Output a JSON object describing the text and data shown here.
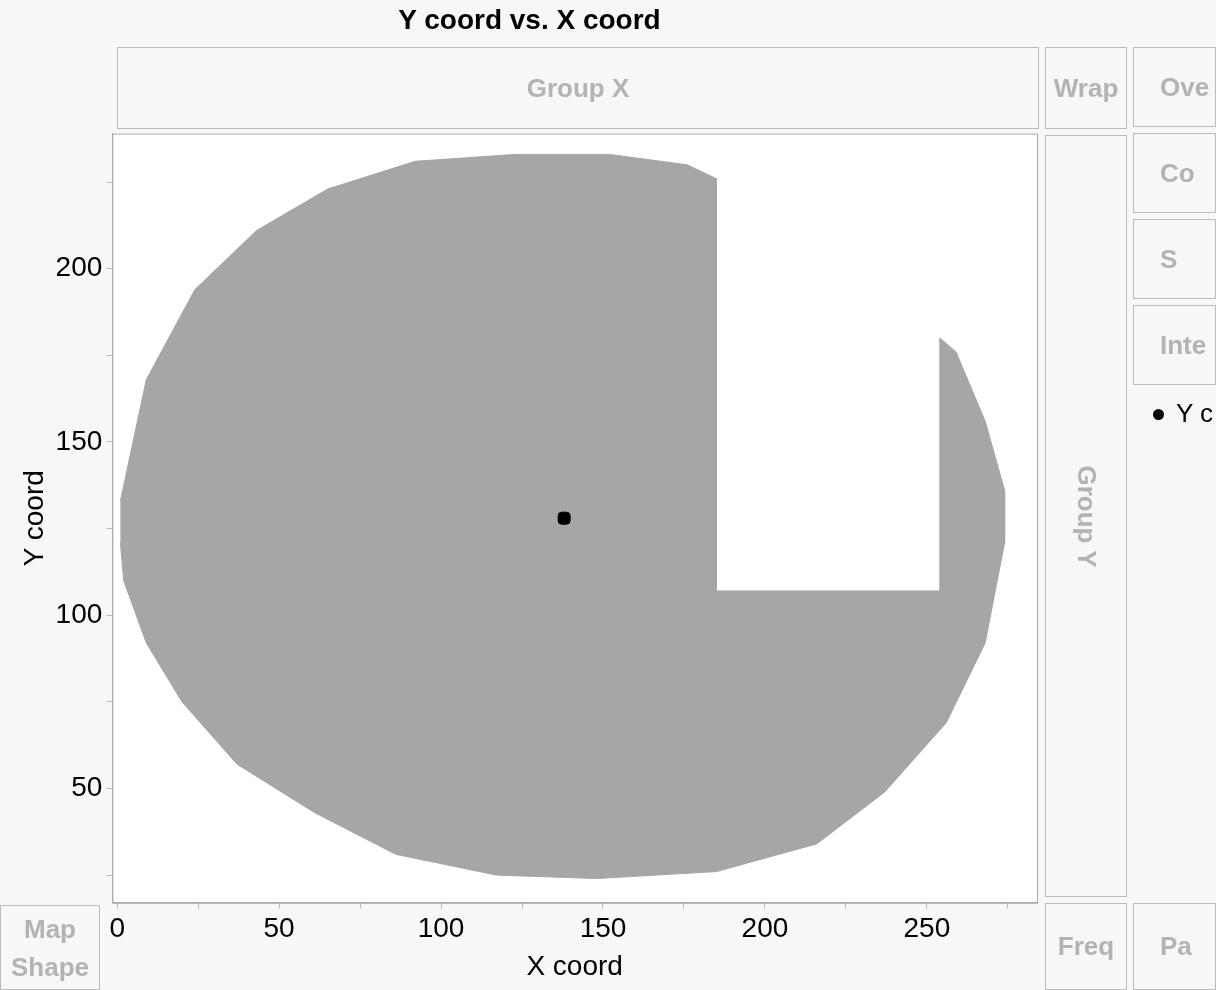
{
  "chart_data": {
    "type": "scatter",
    "title": "Y coord vs. X coord",
    "xlabel": "X coord",
    "ylabel": "Y coord",
    "xlim": [
      -1.5,
      284
    ],
    "ylim": [
      17,
      239
    ],
    "xticks": [
      0,
      {
        "value": 25,
        "label": null
      },
      50,
      {
        "value": 75,
        "label": null
      },
      100,
      {
        "value": 125,
        "label": null
      },
      150,
      {
        "value": 175,
        "label": null
      },
      200,
      {
        "value": 225,
        "label": null
      },
      250,
      {
        "value": 275,
        "label": null
      }
    ],
    "yticks": [
      {
        "value": 25,
        "label": null
      },
      50,
      {
        "value": 75,
        "label": null
      },
      100,
      {
        "value": 125,
        "label": null
      },
      150,
      {
        "value": 175,
        "label": null
      },
      200,
      {
        "value": 225,
        "label": null
      }
    ],
    "grid": false,
    "legend": false,
    "series": [
      {
        "type": "area",
        "color": "#a6a6a6",
        "marker": "none",
        "x": [
          1,
          9,
          24,
          43,
          65,
          92,
          123,
          152,
          176,
          185,
          185,
          254,
          254,
          259,
          268,
          274,
          274,
          268,
          256,
          237,
          216,
          185,
          148,
          117,
          86,
          61,
          37,
          20,
          9,
          2,
          1
        ],
        "values": [
          133,
          168,
          194,
          211,
          223,
          231,
          233,
          233,
          230,
          226,
          107,
          107,
          180,
          176,
          156,
          136,
          121,
          92,
          69,
          49,
          34,
          26,
          24,
          25,
          31,
          43,
          57,
          75,
          92,
          110,
          121
        ]
      },
      {
        "color": "#000000",
        "marker": "square",
        "x": [
          138
        ],
        "values": [
          128
        ]
      }
    ],
    "annotations": [
      "Group X",
      "Wrap",
      "Ove",
      "Co",
      "S",
      "Inte",
      "Y c",
      "Group Y",
      "Freq",
      "Pa",
      "Map Shape"
    ]
  }
}
